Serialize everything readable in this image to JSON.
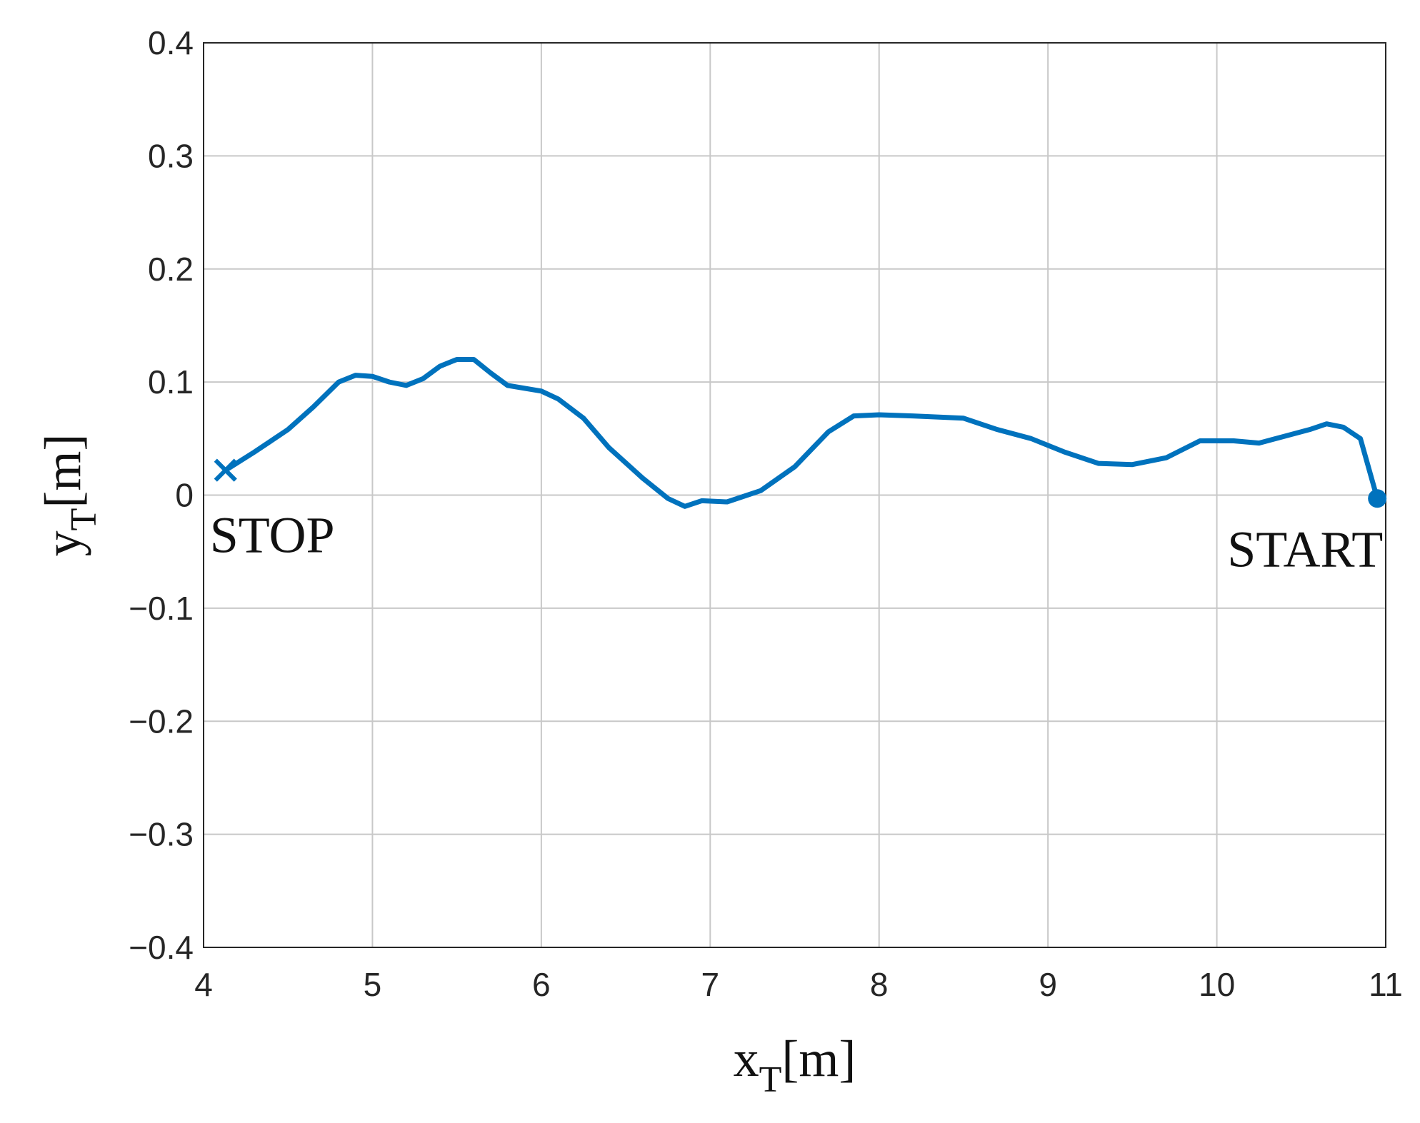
{
  "chart_data": {
    "type": "line",
    "xlabel": "x",
    "xlabel_sub": "T",
    "xlabel_unit": "[m]",
    "ylabel": "y",
    "ylabel_sub": "T",
    "ylabel_unit": "[m]",
    "xlim": [
      4,
      11
    ],
    "xticks": [
      4,
      5,
      6,
      7,
      8,
      9,
      10,
      11
    ],
    "ylim": [
      -0.4,
      0.4
    ],
    "yticks": [
      {
        "value": -0.4,
        "label": "−0.4"
      },
      {
        "value": -0.3,
        "label": "−0.3"
      },
      {
        "value": -0.2,
        "label": "−0.2"
      },
      {
        "value": -0.1,
        "label": "−0.1"
      },
      0,
      0.1,
      0.2,
      0.3,
      0.4
    ],
    "grid": true,
    "series": [
      {
        "color": "#0072bd",
        "x": [
          4.13,
          4.3,
          4.5,
          4.65,
          4.8,
          4.9,
          5.0,
          5.1,
          5.2,
          5.3,
          5.4,
          5.5,
          5.6,
          5.7,
          5.8,
          6.0,
          6.1,
          6.25,
          6.4,
          6.6,
          6.75,
          6.85,
          6.95,
          7.1,
          7.3,
          7.5,
          7.7,
          7.85,
          8.0,
          8.2,
          8.5,
          8.7,
          8.9,
          9.1,
          9.3,
          9.5,
          9.7,
          9.9,
          10.1,
          10.25,
          10.4,
          10.55,
          10.65,
          10.75,
          10.85,
          10.95
        ],
        "values": [
          0.022,
          0.038,
          0.058,
          0.078,
          0.1,
          0.106,
          0.105,
          0.1,
          0.097,
          0.103,
          0.114,
          0.12,
          0.12,
          0.108,
          0.097,
          0.092,
          0.085,
          0.068,
          0.042,
          0.015,
          -0.003,
          -0.01,
          -0.005,
          -0.006,
          0.004,
          0.025,
          0.056,
          0.07,
          0.071,
          0.07,
          0.068,
          0.058,
          0.05,
          0.038,
          0.028,
          0.027,
          0.033,
          0.048,
          0.048,
          0.046,
          0.052,
          0.058,
          0.063,
          0.06,
          0.05,
          -0.003
        ]
      }
    ],
    "start": {
      "x": 10.95,
      "y": -0.003,
      "label": "START"
    },
    "stop": {
      "x": 4.13,
      "y": 0.022,
      "label": "STOP"
    }
  }
}
